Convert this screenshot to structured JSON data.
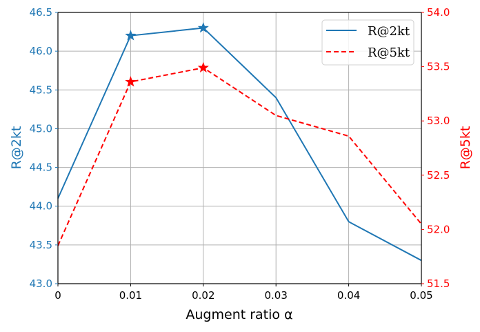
{
  "chart_data": {
    "type": "line",
    "title": "",
    "xlabel": "Augment ratio α",
    "x": [
      0,
      0.01,
      0.02,
      0.03,
      0.04,
      0.05
    ],
    "x_tick_labels": [
      "0",
      "0.01",
      "0.02",
      "0.03",
      "0.04",
      "0.05"
    ],
    "xlim": [
      0,
      0.05
    ],
    "grid": true,
    "legend_position": "upper right",
    "axes": {
      "left": {
        "label": "R@2kt",
        "color": "#1f77b4",
        "ylim": [
          43.0,
          46.5
        ],
        "ticks": [
          "43.0",
          "43.5",
          "44.0",
          "44.5",
          "45.0",
          "45.5",
          "46.0",
          "46.5"
        ]
      },
      "right": {
        "label": "R@5kt",
        "color": "#ff0000",
        "ylim": [
          51.5,
          54.0
        ],
        "ticks": [
          "51.5",
          "52.0",
          "52.5",
          "53.0",
          "53.5",
          "54.0"
        ]
      }
    },
    "series": [
      {
        "name": "R@2kt",
        "axis": "left",
        "color": "#1f77b4",
        "linestyle": "solid",
        "values": [
          44.1,
          46.2,
          46.3,
          45.4,
          43.8,
          43.3
        ],
        "star_markers_at": [
          0.01,
          0.02
        ]
      },
      {
        "name": "R@5kt",
        "axis": "right",
        "color": "#ff0000",
        "linestyle": "dashed",
        "values": [
          51.85,
          53.36,
          53.49,
          53.05,
          52.86,
          52.05
        ],
        "star_markers_at": [
          0.01,
          0.02
        ]
      }
    ]
  }
}
